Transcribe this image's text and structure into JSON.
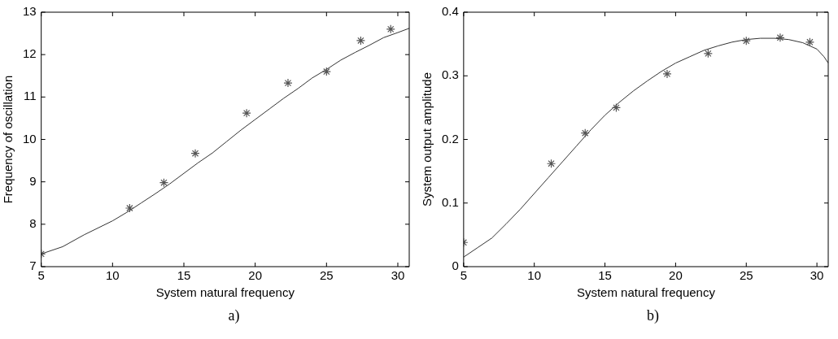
{
  "chart_data": [
    {
      "type": "line",
      "xlabel": "System natural frequency",
      "ylabel": "Frequency of oscillation",
      "xlim": [
        5,
        30.8
      ],
      "xticks": [
        5,
        10,
        15,
        20,
        25,
        30
      ],
      "ylim": [
        7,
        13
      ],
      "yticks": [
        7,
        8,
        9,
        10,
        11,
        12,
        13
      ],
      "grid": false,
      "legend": false,
      "annotations": [
        "a)"
      ],
      "series": [
        {
          "type": "scatter",
          "marker": "cross",
          "color": "#555555",
          "x": [
            5,
            11.2,
            13.6,
            15.8,
            19.4,
            22.3,
            25,
            27.4,
            29.5
          ],
          "values": [
            7.3,
            8.38,
            8.98,
            9.67,
            10.62,
            11.33,
            11.6,
            12.33,
            12.6
          ]
        },
        {
          "type": "line",
          "marker": "none",
          "line_style": "solid",
          "color": "#333333",
          "x": [
            5,
            6.5,
            8,
            10,
            11,
            12,
            13,
            14,
            15,
            16,
            17,
            18,
            19,
            20,
            21,
            22,
            23,
            24,
            25,
            26,
            27,
            28,
            29,
            30,
            30.8
          ],
          "values": [
            7.3,
            7.47,
            7.75,
            8.08,
            8.28,
            8.5,
            8.72,
            8.95,
            9.2,
            9.45,
            9.68,
            9.95,
            10.22,
            10.47,
            10.72,
            10.97,
            11.2,
            11.45,
            11.65,
            11.87,
            12.05,
            12.22,
            12.4,
            12.52,
            12.62
          ]
        }
      ]
    },
    {
      "type": "line",
      "xlabel": "System natural frequency",
      "ylabel": "System output amplitude",
      "xlim": [
        5,
        30.8
      ],
      "xticks": [
        5,
        10,
        15,
        20,
        25,
        30
      ],
      "ylim": [
        0,
        0.4
      ],
      "yticks": [
        0,
        0.1,
        0.2,
        0.3,
        0.4
      ],
      "grid": false,
      "legend": false,
      "annotations": [
        "b)"
      ],
      "series": [
        {
          "type": "scatter",
          "marker": "cross",
          "color": "#555555",
          "x": [
            5,
            11.2,
            13.6,
            15.8,
            19.4,
            22.3,
            25,
            27.4,
            29.5
          ],
          "values": [
            0.038,
            0.162,
            0.21,
            0.25,
            0.303,
            0.335,
            0.355,
            0.36,
            0.353
          ]
        },
        {
          "type": "line",
          "marker": "none",
          "line_style": "solid",
          "color": "#333333",
          "x": [
            5,
            6,
            7,
            8,
            9,
            10,
            11,
            12,
            13,
            14,
            15,
            16,
            17,
            18,
            19,
            20,
            21,
            22,
            23,
            24,
            25,
            26,
            27,
            28,
            29,
            30,
            30.5,
            30.8
          ],
          "values": [
            0.015,
            0.03,
            0.045,
            0.067,
            0.09,
            0.115,
            0.14,
            0.165,
            0.19,
            0.215,
            0.238,
            0.258,
            0.276,
            0.292,
            0.307,
            0.32,
            0.33,
            0.34,
            0.347,
            0.353,
            0.357,
            0.359,
            0.359,
            0.357,
            0.352,
            0.342,
            0.33,
            0.32
          ]
        }
      ]
    }
  ]
}
